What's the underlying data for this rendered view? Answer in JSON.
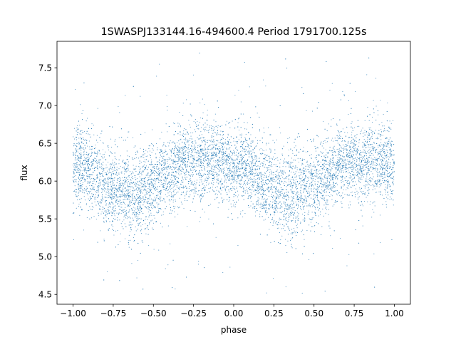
{
  "chart_data": {
    "type": "scatter",
    "title": "1SWASPJ133144.16-494600.4 Period 1791700.125s",
    "xlabel": "phase",
    "ylabel": "flux",
    "xlim": [
      -1.1,
      1.1
    ],
    "ylim": [
      4.37,
      7.85
    ],
    "x_ticks": [
      -1.0,
      -0.75,
      -0.5,
      -0.25,
      0.0,
      0.25,
      0.5,
      0.75,
      1.0
    ],
    "x_tick_labels": [
      "−1.00",
      "−0.75",
      "−0.50",
      "−0.25",
      "0.00",
      "0.25",
      "0.50",
      "0.75",
      "1.00"
    ],
    "y_ticks": [
      4.5,
      5.0,
      5.5,
      6.0,
      6.5,
      7.0,
      7.5
    ],
    "y_tick_labels": [
      "4.5",
      "5.0",
      "5.5",
      "6.0",
      "6.5",
      "7.0",
      "7.5"
    ],
    "grid": false,
    "series": [
      {
        "color": "#1f77b4",
        "marker": "point",
        "phase_range": [
          -1.0,
          1.0
        ],
        "profile": {
          "phase": [
            0.0,
            0.05,
            0.1,
            0.15,
            0.2,
            0.25,
            0.3,
            0.35,
            0.4,
            0.45,
            0.5,
            0.55,
            0.6,
            0.65,
            0.7,
            0.75,
            0.8,
            0.85,
            0.9,
            0.95,
            1.0
          ],
          "median_flux": [
            6.2,
            6.2,
            6.15,
            6.05,
            5.95,
            5.9,
            5.85,
            5.85,
            5.85,
            5.9,
            5.95,
            6.05,
            6.1,
            6.2,
            6.25,
            6.25,
            6.25,
            6.25,
            6.25,
            6.22,
            6.2
          ],
          "spread": [
            0.25,
            0.25,
            0.25,
            0.27,
            0.27,
            0.28,
            0.3,
            0.3,
            0.3,
            0.28,
            0.27,
            0.25,
            0.25,
            0.25,
            0.25,
            0.25,
            0.25,
            0.25,
            0.25,
            0.25,
            0.25
          ]
        },
        "flux_min": 4.5,
        "flux_max": 7.7
      }
    ]
  }
}
